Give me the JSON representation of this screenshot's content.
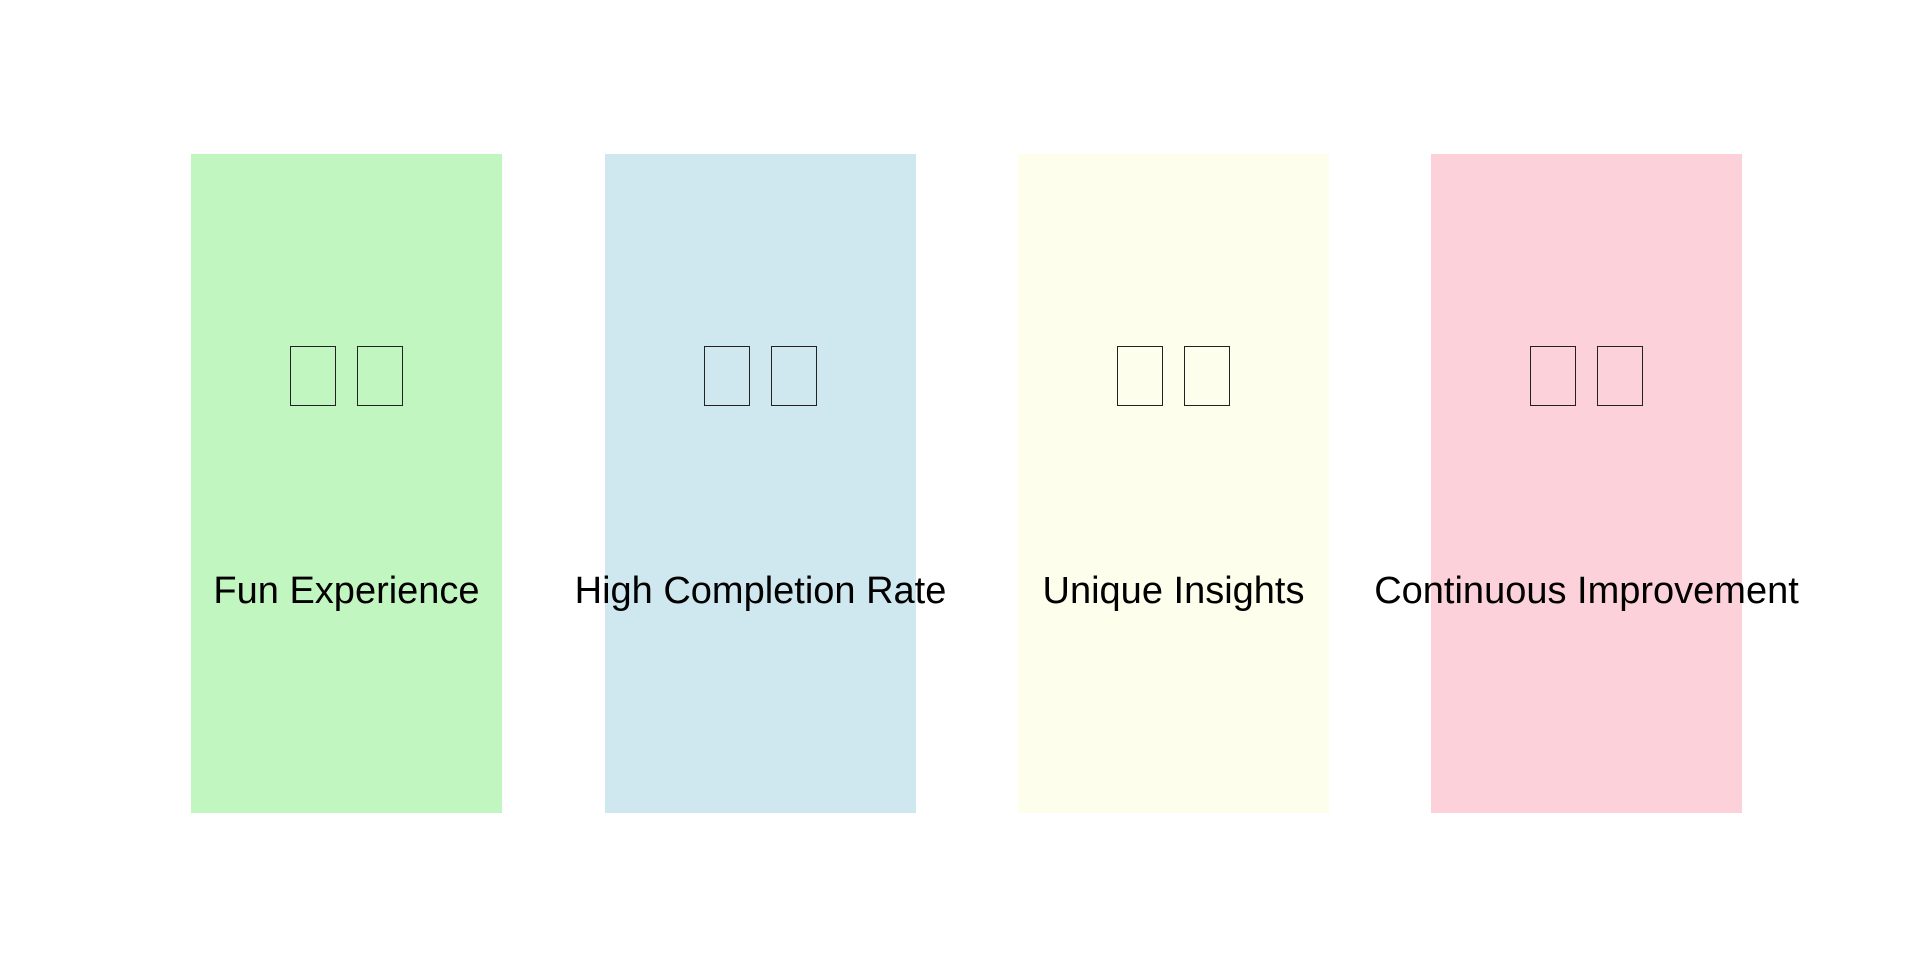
{
  "panels": [
    {
      "label": "Fun Experience",
      "color": "#c1f6c1",
      "icon": "missing-glyph-icon"
    },
    {
      "label": "High Completion Rate",
      "color": "#cfe7ef",
      "icon": "missing-glyph-icon"
    },
    {
      "label": "Unique Insights",
      "color": "#fefeec",
      "icon": "missing-glyph-icon"
    },
    {
      "label": "Continuous Improvement",
      "color": "#fcd1d9",
      "icon": "missing-glyph-icon"
    }
  ]
}
